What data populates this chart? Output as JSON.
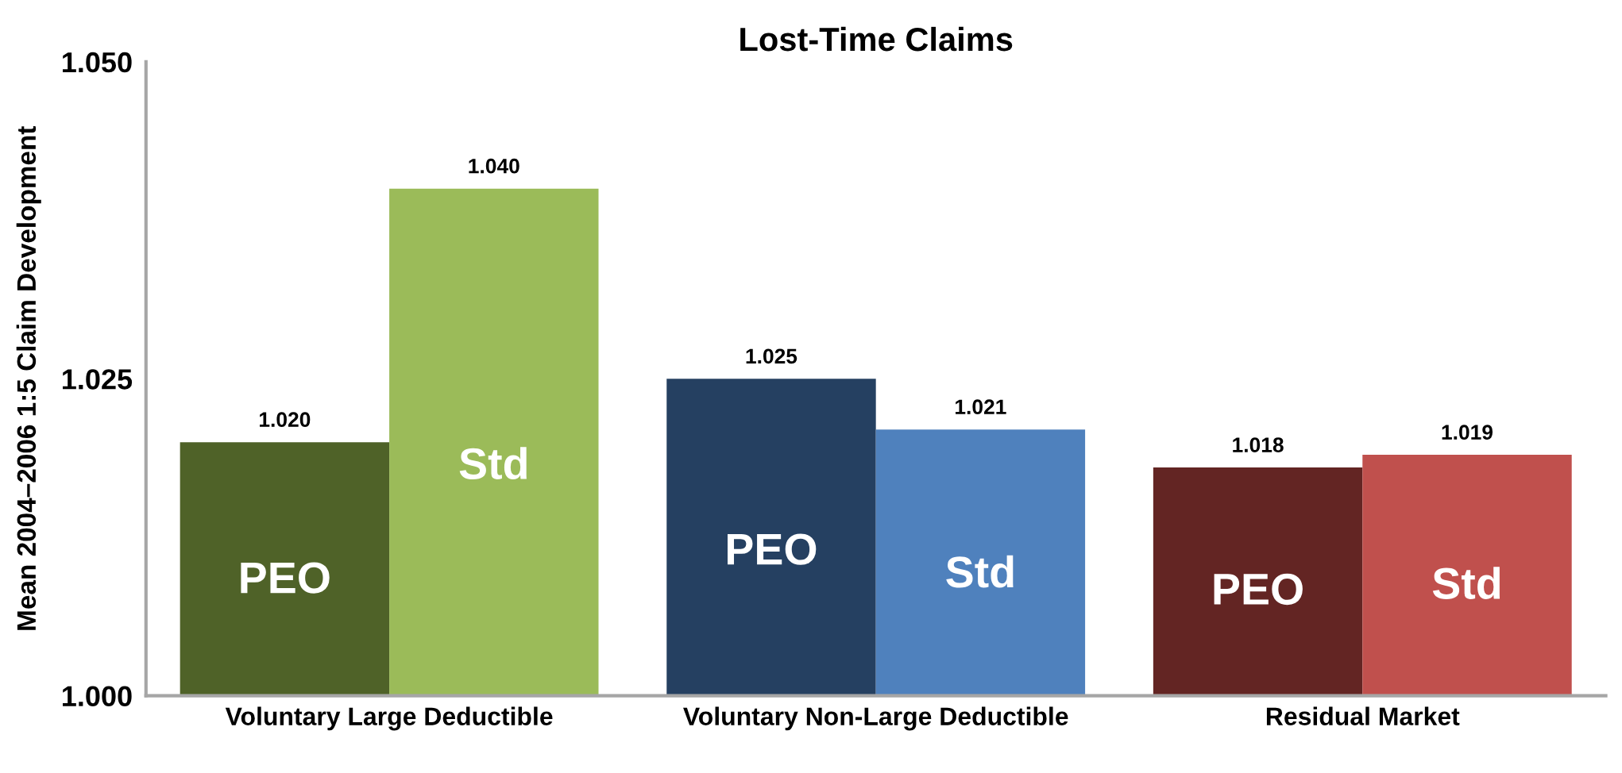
{
  "chart_data": {
    "type": "bar",
    "title": "Lost-Time Claims",
    "ylabel": "Mean 2004–2006 1:5 Claim Development",
    "categories": [
      "Voluntary Large Deductible",
      "Voluntary Non-Large Deductible",
      "Residual Market"
    ],
    "series": [
      {
        "name": "PEO",
        "colors": [
          "#4f6228",
          "#254061",
          "#632523"
        ],
        "values": [
          1.02,
          1.025,
          1.018
        ],
        "value_labels": [
          "1.020",
          "1.025",
          "1.018"
        ]
      },
      {
        "name": "Std",
        "colors": [
          "#9bbb59",
          "#4f81bd",
          "#c0504d"
        ],
        "values": [
          1.04,
          1.021,
          1.019
        ],
        "value_labels": [
          "1.040",
          "1.021",
          "1.019"
        ]
      }
    ],
    "ylim": [
      1.0,
      1.05
    ],
    "yticks": [
      {
        "value": 1.0,
        "label": "1.000"
      },
      {
        "value": 1.025,
        "label": "1.025"
      },
      {
        "value": 1.05,
        "label": "1.050"
      }
    ]
  }
}
